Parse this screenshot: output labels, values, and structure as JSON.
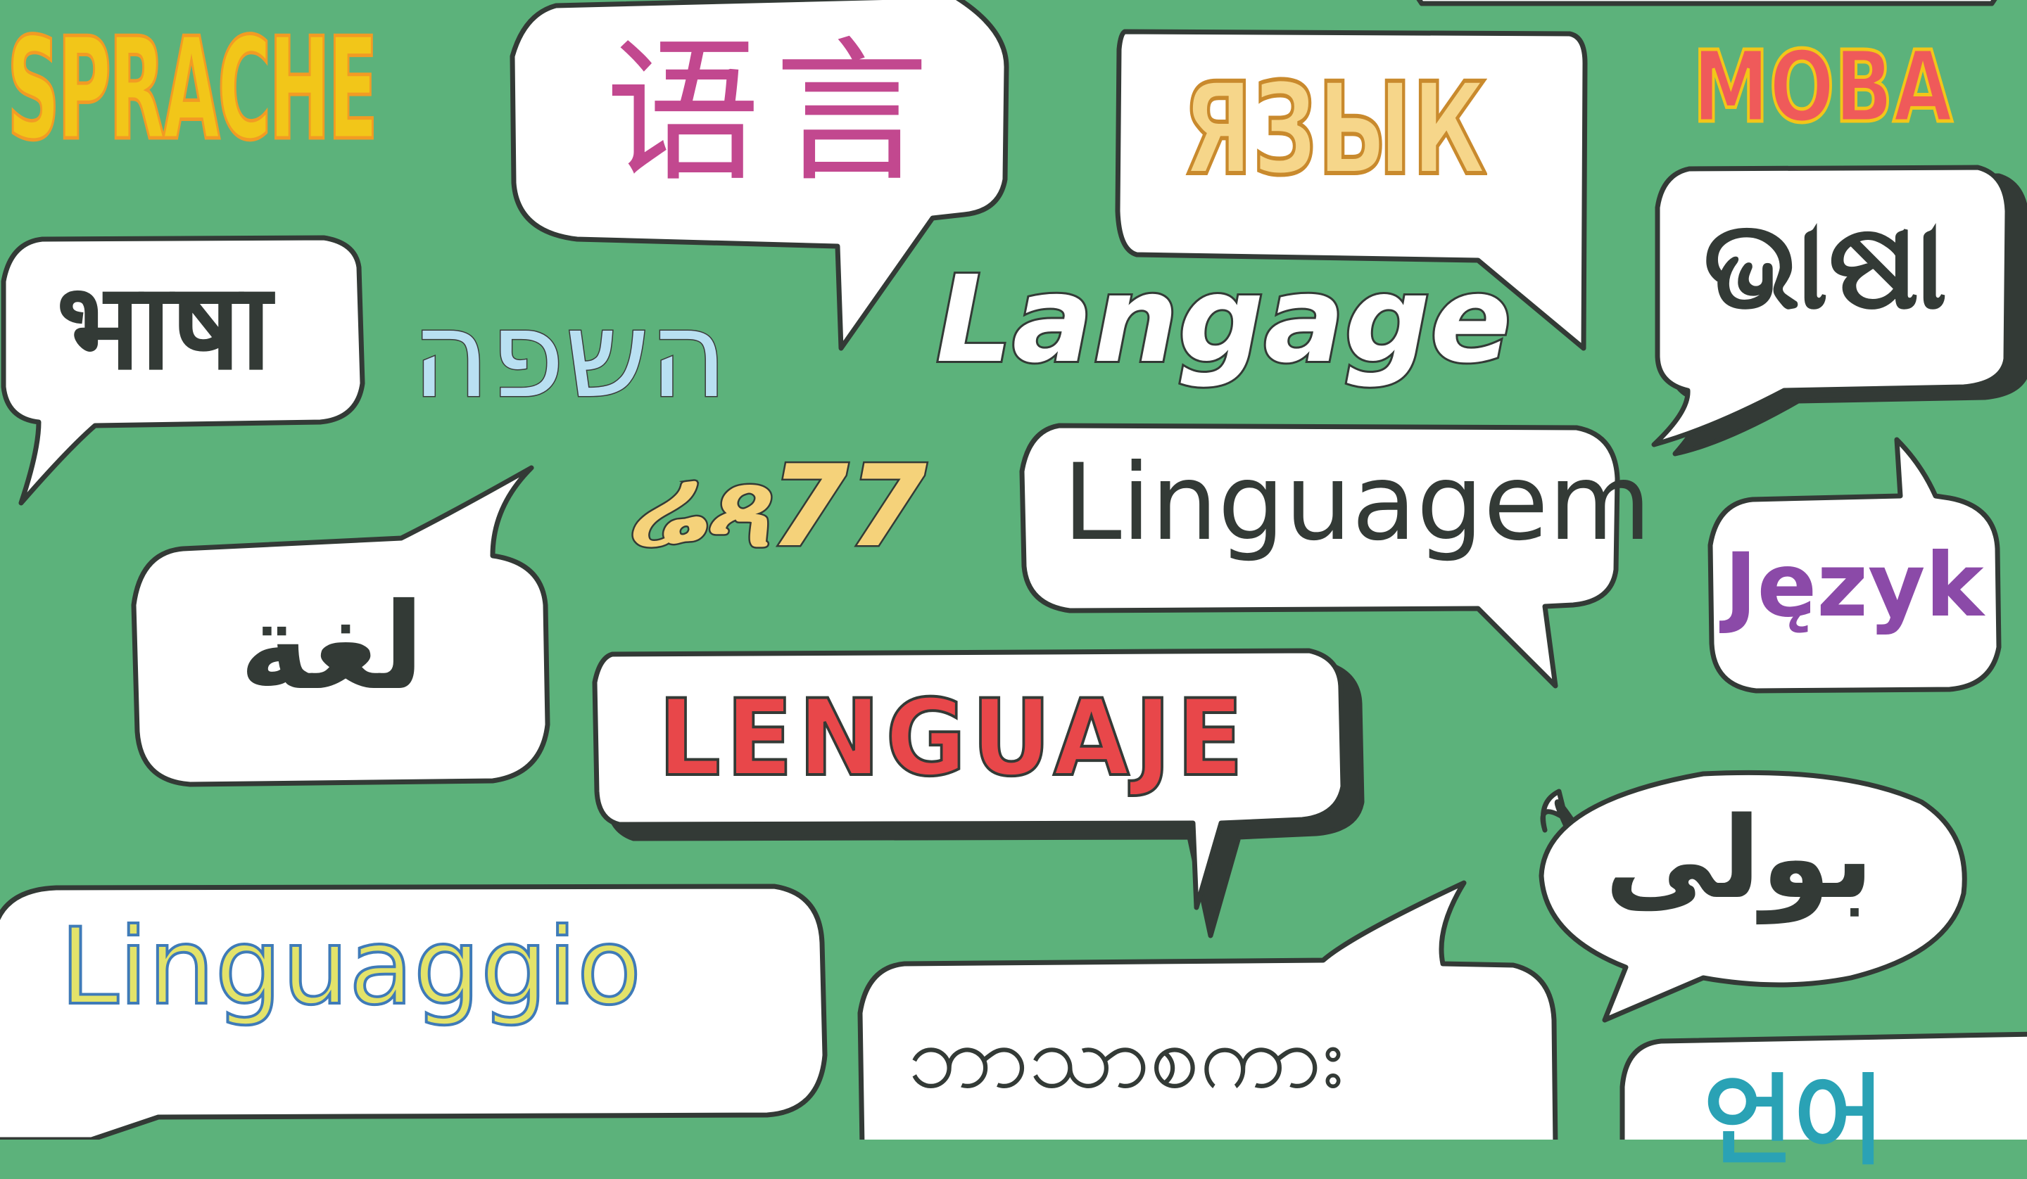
{
  "colors": {
    "background": "#5cb27b",
    "bubble_fill": "#ffffff",
    "bubble_outline": "#333a36",
    "shadow": "#333a36"
  },
  "words": {
    "sprache": {
      "text": "SPRACHE",
      "color": "#f2c619",
      "accent": "#f29b24"
    },
    "chinese": {
      "text": "语言",
      "color": "#c2488f"
    },
    "russian": {
      "text": "ЯЗЫК",
      "color": "#f6d68a",
      "accent": "#c98a2d"
    },
    "ukrainian": {
      "text": "МОВА",
      "color": "#ef5a5a",
      "accent": "#f2c619"
    },
    "hindi": {
      "text": "भाषा",
      "color": "#333a36"
    },
    "hebrew": {
      "text": "השפה",
      "color": "#b9e0f2"
    },
    "french": {
      "text": "Langage",
      "color": "#ffffff"
    },
    "odia": {
      "text": "ଭାଷା",
      "color": "#333a36"
    },
    "japanese": {
      "text": "ሬጻ77",
      "color": "#f5d27a"
    },
    "portuguese": {
      "text": "Linguagem",
      "color": "#333a36"
    },
    "polish": {
      "text": "Język",
      "color": "#8b4aa8"
    },
    "arabic": {
      "text": "لغة",
      "color": "#333a36"
    },
    "spanish": {
      "text": "LENGUAJE",
      "color": "#e8474a"
    },
    "urdu": {
      "text": "بولی",
      "color": "#333a36"
    },
    "italian": {
      "text": "Linguaggio",
      "color": "#e3e36a",
      "accent": "#3f7bb8"
    },
    "burmese": {
      "text": "ဘာသာစကား",
      "color": "#333a36"
    },
    "korean": {
      "text": "언어",
      "color": "#2aa2b5"
    }
  }
}
